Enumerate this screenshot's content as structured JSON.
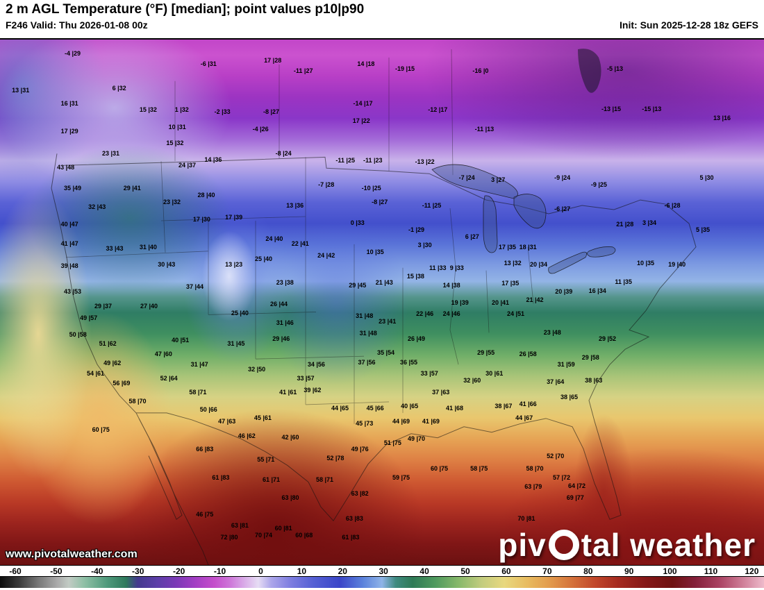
{
  "header": {
    "title": "2 m AGL Temperature (°F) [median]; point values p10|p90",
    "valid_label": "F246 Valid: Thu 2026-01-08 00z",
    "init_label": "Init: Sun 2025-12-28 18z GEFS"
  },
  "watermarks": {
    "url": "www.pivotalweather.com",
    "brand_prefix": "piv",
    "brand_suffix": "tal weather"
  },
  "colorbar": {
    "ticks": [
      -60,
      -50,
      -40,
      -30,
      -20,
      -10,
      0,
      10,
      20,
      30,
      40,
      50,
      60,
      70,
      80,
      90,
      100,
      110,
      120
    ],
    "stops": [
      {
        "p": 0,
        "c": "#0b0b0b"
      },
      {
        "p": 2.5,
        "c": "#3a3a3a"
      },
      {
        "p": 5,
        "c": "#777777"
      },
      {
        "p": 7.5,
        "c": "#aaaaaa"
      },
      {
        "p": 9,
        "c": "#c2cbc4"
      },
      {
        "p": 11,
        "c": "#8fc0a6"
      },
      {
        "p": 14,
        "c": "#4f9a7c"
      },
      {
        "p": 16.5,
        "c": "#2e7a5c"
      },
      {
        "p": 18,
        "c": "#433a8e"
      },
      {
        "p": 20.5,
        "c": "#5c3fa8"
      },
      {
        "p": 23,
        "c": "#7a3ab6"
      },
      {
        "p": 25.5,
        "c": "#a23ec4"
      },
      {
        "p": 28,
        "c": "#c44ecb"
      },
      {
        "p": 30,
        "c": "#cd74d8"
      },
      {
        "p": 32,
        "c": "#d9ace8"
      },
      {
        "p": 33.8,
        "c": "#e6dcf4"
      },
      {
        "p": 35.5,
        "c": "#aca6ea"
      },
      {
        "p": 38,
        "c": "#7e7ee0"
      },
      {
        "p": 41,
        "c": "#5560d4"
      },
      {
        "p": 44.5,
        "c": "#3a46c8"
      },
      {
        "p": 47.5,
        "c": "#5b82dc"
      },
      {
        "p": 50,
        "c": "#8fb4e8"
      },
      {
        "p": 51.8,
        "c": "#3e8a80"
      },
      {
        "p": 54,
        "c": "#2e7a56"
      },
      {
        "p": 57,
        "c": "#4f9a5e"
      },
      {
        "p": 60,
        "c": "#86b86a"
      },
      {
        "p": 63,
        "c": "#c2cc7e"
      },
      {
        "p": 66,
        "c": "#e8d87e"
      },
      {
        "p": 69,
        "c": "#e8bc60"
      },
      {
        "p": 72,
        "c": "#e29a4c"
      },
      {
        "p": 75,
        "c": "#d4703a"
      },
      {
        "p": 78,
        "c": "#c0462a"
      },
      {
        "p": 81,
        "c": "#a42a20"
      },
      {
        "p": 84.5,
        "c": "#851717"
      },
      {
        "p": 88,
        "c": "#6e1111"
      },
      {
        "p": 91,
        "c": "#84203a"
      },
      {
        "p": 94,
        "c": "#a84060"
      },
      {
        "p": 97,
        "c": "#cc7a94"
      },
      {
        "p": 100,
        "c": "#eebacb"
      }
    ]
  },
  "map": {
    "points": [
      [
        9.5,
        2.6,
        "-4 |29"
      ],
      [
        27.3,
        4.6,
        "-6 |31"
      ],
      [
        35.7,
        3.9,
        "17 |28"
      ],
      [
        39.7,
        5.9,
        "-11 |27"
      ],
      [
        47.9,
        4.6,
        "14 |18"
      ],
      [
        53.0,
        5.5,
        "-19 |15"
      ],
      [
        62.9,
        5.9,
        "-16 |0"
      ],
      [
        80.5,
        5.5,
        "-5 |13"
      ],
      [
        2.7,
        9.6,
        "13 |31"
      ],
      [
        15.6,
        9.2,
        "6 |32"
      ],
      [
        9.1,
        12.2,
        "16 |31"
      ],
      [
        19.4,
        13.4,
        "15 |32"
      ],
      [
        23.8,
        13.4,
        "1 |32"
      ],
      [
        29.1,
        13.8,
        "-2 |33"
      ],
      [
        35.5,
        13.8,
        "-8 |27"
      ],
      [
        47.5,
        12.2,
        "-14 |17"
      ],
      [
        57.3,
        13.4,
        "-12 |17"
      ],
      [
        80.0,
        13.2,
        "-13 |15"
      ],
      [
        85.3,
        13.2,
        "-15 |13"
      ],
      [
        94.5,
        14.9,
        "13 |16"
      ],
      [
        9.1,
        17.4,
        "17 |29"
      ],
      [
        23.2,
        16.7,
        "10 |31"
      ],
      [
        34.1,
        17.1,
        "-4 |26"
      ],
      [
        47.3,
        15.4,
        "17 |22"
      ],
      [
        63.4,
        17.1,
        "-11 |13"
      ],
      [
        14.5,
        21.7,
        "23 |31"
      ],
      [
        22.9,
        19.7,
        "15 |32"
      ],
      [
        24.5,
        23.9,
        "24 |37"
      ],
      [
        27.9,
        22.8,
        "14 |36"
      ],
      [
        37.1,
        21.7,
        "-8 |24"
      ],
      [
        45.2,
        23.0,
        "-11 |25"
      ],
      [
        48.8,
        23.0,
        "-11 |23"
      ],
      [
        55.6,
        23.3,
        "-13 |22"
      ],
      [
        8.6,
        24.3,
        "43 |48"
      ],
      [
        9.5,
        28.3,
        "35 |49"
      ],
      [
        17.3,
        28.3,
        "29 |41"
      ],
      [
        22.5,
        30.9,
        "23 |32"
      ],
      [
        27.0,
        29.6,
        "28 |40"
      ],
      [
        42.7,
        27.6,
        "-7 |28"
      ],
      [
        48.6,
        28.3,
        "-10 |25"
      ],
      [
        49.7,
        30.9,
        "-8 |27"
      ],
      [
        56.5,
        31.6,
        "-11 |25"
      ],
      [
        61.1,
        26.3,
        "-7 |24"
      ],
      [
        65.2,
        26.7,
        "3 |27"
      ],
      [
        73.6,
        26.3,
        "-9 |24"
      ],
      [
        78.4,
        27.6,
        "-9 |25"
      ],
      [
        92.5,
        26.3,
        "5 |30"
      ],
      [
        12.7,
        31.8,
        "32 |43"
      ],
      [
        88.0,
        31.6,
        "-6 |28"
      ],
      [
        73.6,
        32.2,
        "-6 |27"
      ],
      [
        9.1,
        35.1,
        "40 |47"
      ],
      [
        26.4,
        34.2,
        "17 |30"
      ],
      [
        30.6,
        33.8,
        "17 |39"
      ],
      [
        38.6,
        31.6,
        "13 |36"
      ],
      [
        46.8,
        34.9,
        "0 |33"
      ],
      [
        54.5,
        36.2,
        "-1 |29"
      ],
      [
        61.8,
        37.5,
        "6 |27"
      ],
      [
        81.8,
        35.1,
        "21 |28"
      ],
      [
        85.0,
        34.9,
        "3 |34"
      ],
      [
        92.0,
        36.2,
        "5 |35"
      ],
      [
        9.1,
        38.8,
        "41 |47"
      ],
      [
        15.0,
        39.7,
        "33 |43"
      ],
      [
        19.4,
        39.5,
        "31 |40"
      ],
      [
        35.9,
        37.9,
        "24 |40"
      ],
      [
        39.3,
        38.8,
        "22 |41"
      ],
      [
        49.1,
        40.4,
        "10 |35"
      ],
      [
        55.6,
        39.1,
        "3 |30"
      ],
      [
        69.1,
        39.5,
        "18 |31"
      ],
      [
        66.4,
        39.5,
        "17 |35"
      ],
      [
        84.5,
        42.5,
        "10 |35"
      ],
      [
        88.6,
        42.8,
        "19 |40"
      ],
      [
        34.5,
        41.7,
        "25 |40"
      ],
      [
        42.7,
        41.1,
        "24 |42"
      ],
      [
        9.1,
        43.0,
        "39 |48"
      ],
      [
        21.8,
        42.8,
        "30 |43"
      ],
      [
        30.6,
        42.8,
        "13 |23"
      ],
      [
        57.3,
        43.4,
        "11 |33"
      ],
      [
        59.8,
        43.4,
        "9 |33"
      ],
      [
        67.1,
        42.5,
        "13 |32"
      ],
      [
        70.5,
        42.8,
        "20 |34"
      ],
      [
        81.6,
        46.1,
        "11 |35"
      ],
      [
        78.2,
        47.8,
        "16 |34"
      ],
      [
        54.4,
        45.1,
        "15 |38"
      ],
      [
        25.5,
        47.0,
        "37 |44"
      ],
      [
        37.3,
        46.3,
        "23 |38"
      ],
      [
        46.8,
        46.7,
        "29 |45"
      ],
      [
        50.3,
        46.3,
        "21 |43"
      ],
      [
        59.1,
        46.7,
        "14 |38"
      ],
      [
        66.8,
        46.4,
        "17 |35"
      ],
      [
        73.8,
        48.0,
        "20 |39"
      ],
      [
        9.5,
        48.0,
        "43 |53"
      ],
      [
        13.5,
        50.7,
        "29 |37"
      ],
      [
        19.5,
        50.7,
        "27 |40"
      ],
      [
        36.5,
        50.3,
        "26 |44"
      ],
      [
        60.2,
        50.0,
        "19 |39"
      ],
      [
        65.5,
        50.0,
        "20 |41"
      ],
      [
        70.0,
        49.6,
        "21 |42"
      ],
      [
        31.4,
        52.0,
        "25 |40"
      ],
      [
        47.7,
        52.6,
        "31 |48"
      ],
      [
        50.7,
        53.6,
        "23 |41"
      ],
      [
        55.6,
        52.2,
        "22 |46"
      ],
      [
        59.1,
        52.2,
        "24 |46"
      ],
      [
        67.5,
        52.2,
        "24 |51"
      ],
      [
        11.6,
        53.0,
        "49 |57"
      ],
      [
        10.2,
        56.2,
        "50 |58"
      ],
      [
        14.1,
        57.9,
        "51 |62"
      ],
      [
        23.6,
        57.2,
        "40 |51"
      ],
      [
        30.9,
        57.9,
        "31 |45"
      ],
      [
        37.3,
        53.9,
        "31 |46"
      ],
      [
        36.8,
        57.0,
        "29 |46"
      ],
      [
        48.2,
        55.9,
        "31 |48"
      ],
      [
        54.5,
        57.0,
        "26 |49"
      ],
      [
        72.3,
        55.7,
        "23 |48"
      ],
      [
        79.5,
        57.0,
        "29 |52"
      ],
      [
        21.4,
        59.9,
        "47 |60"
      ],
      [
        26.1,
        61.8,
        "31 |47"
      ],
      [
        14.7,
        61.6,
        "49 |62"
      ],
      [
        12.5,
        63.6,
        "54 |61"
      ],
      [
        15.9,
        65.4,
        "56 |69"
      ],
      [
        22.1,
        64.5,
        "52 |64"
      ],
      [
        33.6,
        62.8,
        "32 |50"
      ],
      [
        41.4,
        61.8,
        "34 |56"
      ],
      [
        40.0,
        64.5,
        "33 |57"
      ],
      [
        48.0,
        61.4,
        "37 |56"
      ],
      [
        50.5,
        59.6,
        "35 |54"
      ],
      [
        53.5,
        61.4,
        "36 |55"
      ],
      [
        56.2,
        63.6,
        "33 |57"
      ],
      [
        63.6,
        59.6,
        "29 |55"
      ],
      [
        69.1,
        59.9,
        "26 |58"
      ],
      [
        74.1,
        61.8,
        "31 |59"
      ],
      [
        77.3,
        60.5,
        "29 |58"
      ],
      [
        61.8,
        64.9,
        "32 |60"
      ],
      [
        64.7,
        63.6,
        "30 |61"
      ],
      [
        72.7,
        65.1,
        "37 |64"
      ],
      [
        77.7,
        64.9,
        "38 |63"
      ],
      [
        18.0,
        68.8,
        "58 |70"
      ],
      [
        25.9,
        67.1,
        "58 |71"
      ],
      [
        37.7,
        67.1,
        "41 |61"
      ],
      [
        40.9,
        66.7,
        "39 |62"
      ],
      [
        44.5,
        70.1,
        "44 |65"
      ],
      [
        49.1,
        70.1,
        "45 |66"
      ],
      [
        53.6,
        69.7,
        "40 |65"
      ],
      [
        57.7,
        67.1,
        "37 |63"
      ],
      [
        59.5,
        70.1,
        "41 |68"
      ],
      [
        65.9,
        69.7,
        "38 |67"
      ],
      [
        69.1,
        69.3,
        "41 |66"
      ],
      [
        74.5,
        68.0,
        "38 |65"
      ],
      [
        27.3,
        70.4,
        "50 |66"
      ],
      [
        34.4,
        72.0,
        "45 |61"
      ],
      [
        29.7,
        72.6,
        "47 |63"
      ],
      [
        47.7,
        73.0,
        "45 |73"
      ],
      [
        52.5,
        72.6,
        "44 |69"
      ],
      [
        56.4,
        72.6,
        "41 |69"
      ],
      [
        68.6,
        72.0,
        "44 |67"
      ],
      [
        13.2,
        74.3,
        "60 |75"
      ],
      [
        32.3,
        75.4,
        "46 |62"
      ],
      [
        38.0,
        75.7,
        "42 |60"
      ],
      [
        26.8,
        78.0,
        "66 |83"
      ],
      [
        34.8,
        79.9,
        "55 |71"
      ],
      [
        47.1,
        78.0,
        "49 |76"
      ],
      [
        51.4,
        76.7,
        "51 |75"
      ],
      [
        54.5,
        75.9,
        "49 |70"
      ],
      [
        43.9,
        79.6,
        "52 |78"
      ],
      [
        57.5,
        81.6,
        "60 |75"
      ],
      [
        62.7,
        81.6,
        "58 |75"
      ],
      [
        70.0,
        81.6,
        "58 |70"
      ],
      [
        72.7,
        79.3,
        "52 |70"
      ],
      [
        28.9,
        83.3,
        "61 |83"
      ],
      [
        35.5,
        83.8,
        "61 |71"
      ],
      [
        42.5,
        83.8,
        "58 |71"
      ],
      [
        52.5,
        83.3,
        "59 |75"
      ],
      [
        69.8,
        85.1,
        "63 |79"
      ],
      [
        73.5,
        83.3,
        "57 |72"
      ],
      [
        75.5,
        84.9,
        "64 |72"
      ],
      [
        38.0,
        87.2,
        "63 |80"
      ],
      [
        47.1,
        86.4,
        "63 |82"
      ],
      [
        75.3,
        87.2,
        "69 |77"
      ],
      [
        26.8,
        90.4,
        "46 |75"
      ],
      [
        31.4,
        92.5,
        "63 |81"
      ],
      [
        37.1,
        93.0,
        "60 |81"
      ],
      [
        46.4,
        91.2,
        "63 |83"
      ],
      [
        68.9,
        91.2,
        "70 |81"
      ],
      [
        30.0,
        94.7,
        "72 |80"
      ],
      [
        34.5,
        94.3,
        "70 |74"
      ],
      [
        39.8,
        94.3,
        "60 |68"
      ],
      [
        45.9,
        94.7,
        "61 |83"
      ]
    ]
  }
}
